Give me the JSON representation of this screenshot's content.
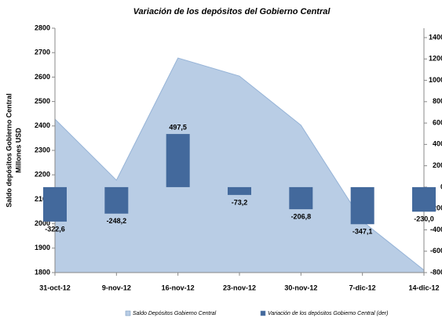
{
  "chart_data": {
    "type": "area_bar",
    "title": "Variación de los depósitos del Gobierno Central",
    "ylabel": [
      "Saldo depósitos Gobierno Central",
      "Millones USD"
    ],
    "categories": [
      "31-oct-12",
      "9-nov-12",
      "16-nov-12",
      "23-nov-12",
      "30-nov-12",
      "7-dic-12",
      "14-dic-12"
    ],
    "series": [
      {
        "name": "Saldo Depósitos Gobierno Central",
        "color": "#b9cde5",
        "type": "area",
        "values": [
          2428,
          2178,
          2678,
          2604,
          2403,
          2010,
          1810
        ]
      },
      {
        "name": "Variación de los depósitos Gobierno Central (der)",
        "color": "#43699c",
        "type": "bar",
        "axis": "y2",
        "values": [
          -322.6,
          -248.2,
          497.5,
          -73.2,
          -206.8,
          -347.1,
          -230.0
        ],
        "value_labels": [
          "-322,6",
          "-248,2",
          "497,5",
          "-73,2",
          "-206,8",
          "-347,1",
          "-230,0"
        ]
      }
    ],
    "ylim": [
      1800,
      2800
    ],
    "yticks": [
      1800,
      1900,
      2000,
      2100,
      2200,
      2300,
      2400,
      2500,
      2600,
      2700,
      2800
    ],
    "y2lim": [
      -800,
      1400
    ],
    "y2ticks": [
      -800,
      -600,
      -400,
      -200,
      0,
      200,
      400,
      600,
      800,
      1000,
      1200,
      1400
    ],
    "legend": "bottom"
  }
}
